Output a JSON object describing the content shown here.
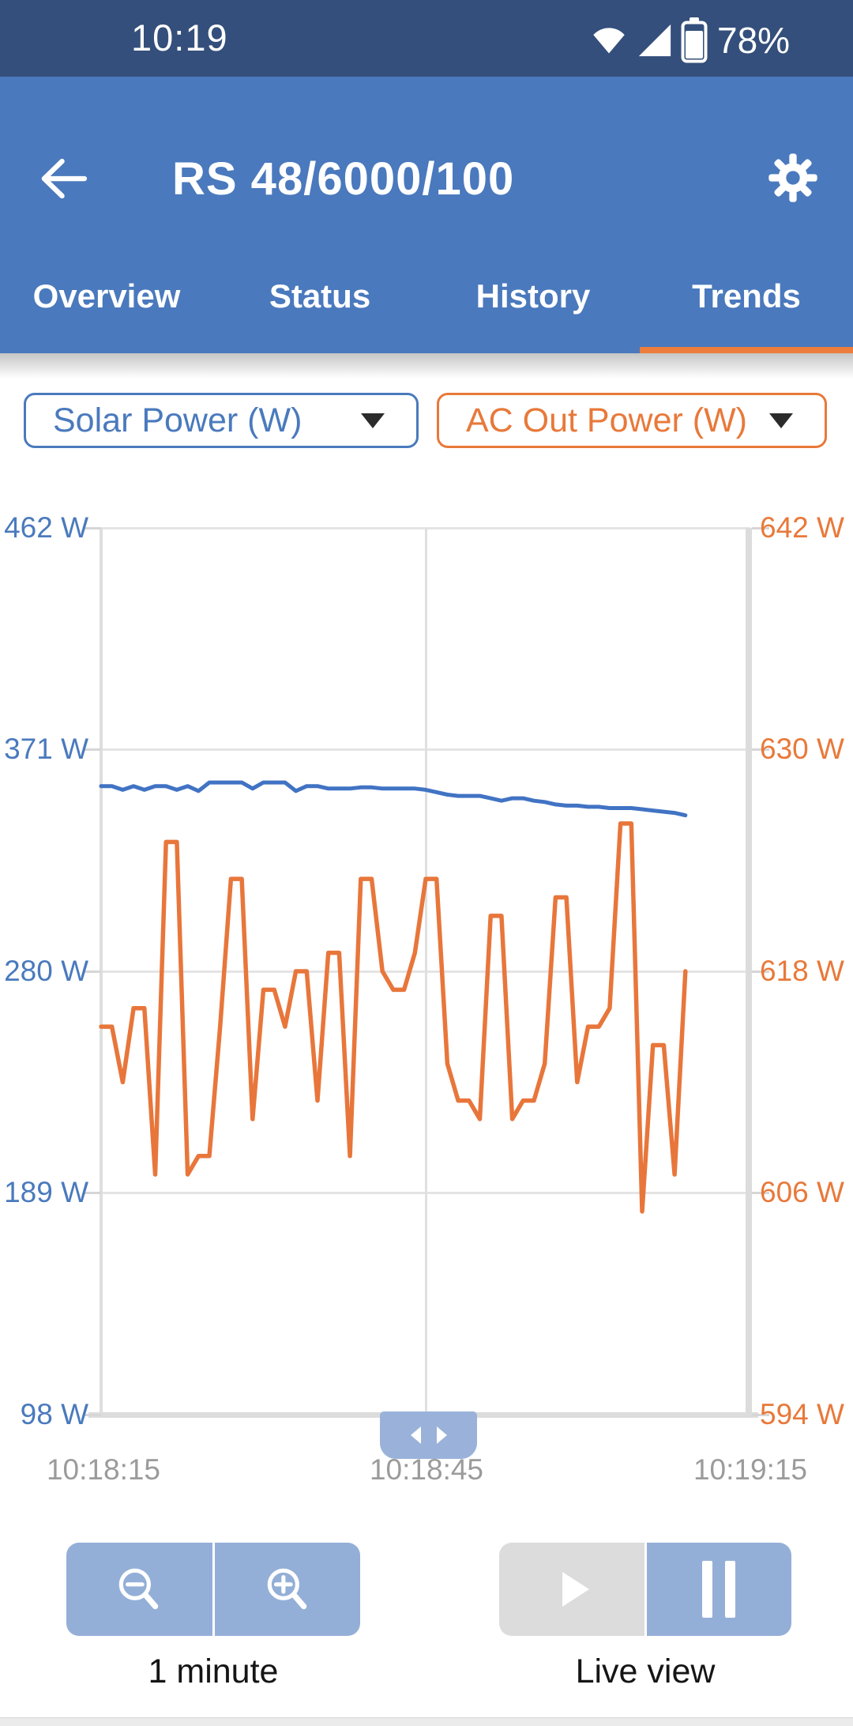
{
  "status_bar": {
    "time": "10:19",
    "battery_percent": "78%",
    "icons": [
      "wifi-icon",
      "cellular-signal-icon",
      "battery-icon"
    ]
  },
  "app_bar": {
    "title": "RS 48/6000/100",
    "back_icon": "arrow-left",
    "settings_icon": "gear"
  },
  "tabs": {
    "items": [
      {
        "label": "Overview",
        "active": false
      },
      {
        "label": "Status",
        "active": false
      },
      {
        "label": "History",
        "active": false
      },
      {
        "label": "Trends",
        "active": true
      }
    ]
  },
  "selectors": {
    "left": {
      "label": "Solar Power (W)",
      "color": "#4a7abd",
      "icon": "caret-down"
    },
    "right": {
      "label": "AC Out Power (W)",
      "color": "#e8793a",
      "icon": "caret-down"
    }
  },
  "chart_data": {
    "type": "line",
    "title": "",
    "grid": true,
    "legend_position": "none",
    "x_axis": {
      "tick_labels": [
        "10:18:15",
        "10:18:45",
        "10:19:15"
      ],
      "start_time": "10:18:15",
      "range_seconds": [
        0,
        60
      ],
      "step_seconds": 1
    },
    "y_left": {
      "tick_labels": [
        "462 W",
        "371 W",
        "280 W",
        "189 W",
        "98 W"
      ],
      "range": [
        98,
        462
      ],
      "color": "#4a7abd"
    },
    "y_right": {
      "tick_labels": [
        "642 W",
        "630 W",
        "618 W",
        "606 W",
        "594 W"
      ],
      "range": [
        594,
        642
      ],
      "color": "#e8793a"
    },
    "series": [
      {
        "name": "Solar Power (W)",
        "axis": "left",
        "color": "#4173c4",
        "values": [
          356,
          356,
          354.5,
          356,
          354.5,
          356,
          356,
          354.5,
          356,
          354,
          357.5,
          357.5,
          357.5,
          357.5,
          355,
          357.5,
          357.5,
          357.5,
          354,
          356,
          356,
          355,
          355,
          355,
          355.5,
          355.5,
          355,
          355,
          355,
          355,
          354.5,
          353.5,
          352.5,
          352,
          352,
          352,
          351,
          350,
          351,
          351,
          350,
          349.5,
          348.5,
          348,
          348,
          347.5,
          347.5,
          347,
          347,
          347,
          346.5,
          346,
          345.5,
          345,
          344
        ]
      },
      {
        "name": "AC Out Power (W)",
        "axis": "right",
        "color": "#e8763b",
        "values": [
          615,
          615,
          612,
          616,
          616,
          607,
          625,
          625,
          607,
          608,
          608,
          615,
          623,
          623,
          610,
          617,
          617,
          615,
          618,
          618,
          611,
          619,
          619,
          608,
          623,
          623,
          618,
          617,
          617,
          619,
          623,
          623,
          613,
          611,
          611,
          610,
          621,
          621,
          610,
          611,
          611,
          613,
          622,
          622,
          612,
          615,
          615,
          616,
          626,
          626,
          605,
          614,
          614,
          607,
          618
        ]
      }
    ]
  },
  "scrollbar": {
    "icon": "pan-left-right-arrows"
  },
  "controls": {
    "zoom_out_icon": "magnifier-minus",
    "zoom_in_icon": "magnifier-plus",
    "zoom_window_label": "1 minute",
    "play_icon": "triangle-right",
    "pause_icon": "pause-bars",
    "live_label": "Live view"
  },
  "colors": {
    "status_bar": "#344f7b",
    "app_bar": "#4a79bd",
    "tab_indicator": "#ed7d3c",
    "series_blue": "#4173c4",
    "series_orange": "#e8763b",
    "button_blue": "#94afd7",
    "button_disabled": "#dcdcdc",
    "grid_line": "#e4e4e4",
    "axis_time_text": "#9b9b9b"
  }
}
